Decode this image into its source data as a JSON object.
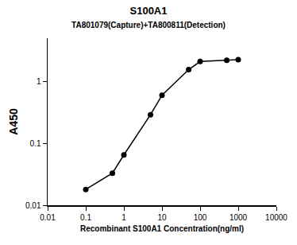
{
  "chart_data": {
    "type": "line",
    "title": "S100A1",
    "subtitle": "TA801079(Capture)+TA800811(Detection)",
    "x_label": "Recombinant S100A1 Concentration(ng/ml)",
    "y_label": "A450",
    "x": [
      0.1,
      0.5,
      1,
      5,
      10,
      50,
      100,
      500,
      1000
    ],
    "values": [
      0.018,
      0.033,
      0.065,
      0.29,
      0.6,
      1.55,
      2.1,
      2.2,
      2.25
    ],
    "color": "#000000",
    "marker": "circle",
    "line_style": "solid",
    "log": true,
    "grid": false,
    "xlim": [
      0.01,
      10000
    ],
    "xticks": [
      0.01,
      0.1,
      1,
      10,
      100,
      1000,
      10000
    ],
    "ylim": [
      0.01,
      5
    ],
    "yticks": [
      0.01,
      0.1,
      1
    ]
  }
}
